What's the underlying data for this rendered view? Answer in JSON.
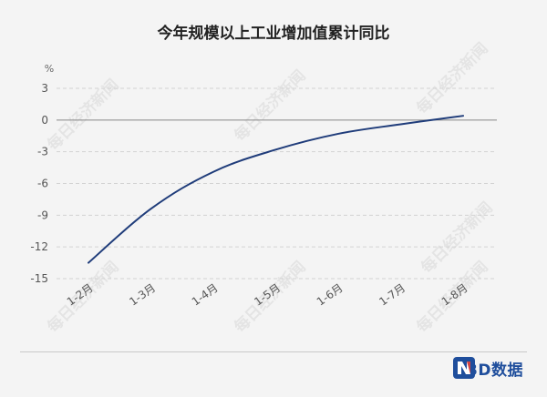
{
  "header": {
    "title": "今年规模以上工业增加值累计同比"
  },
  "chart_data": {
    "type": "line",
    "title": "今年规模以上工业增加值累计同比",
    "ylabel": "%",
    "xlabel": "",
    "ylim": [
      -15,
      3
    ],
    "yticks": [
      3,
      0,
      -3,
      -6,
      -9,
      -12,
      -15
    ],
    "categories": [
      "1-2月",
      "1-3月",
      "1-4月",
      "1-5月",
      "1-6月",
      "1-7月",
      "1-8月"
    ],
    "series": [
      {
        "values": [
          -13.5,
          -8.4,
          -4.9,
          -2.8,
          -1.3,
          -0.4,
          0.4
        ],
        "color": "#1f3c7a"
      }
    ],
    "grid": true
  },
  "watermark": {
    "text": "每日经济新闻"
  },
  "brand": {
    "text": "NBD数据",
    "colors": {
      "blue": "#1f4e9c",
      "red": "#d0312d"
    }
  }
}
